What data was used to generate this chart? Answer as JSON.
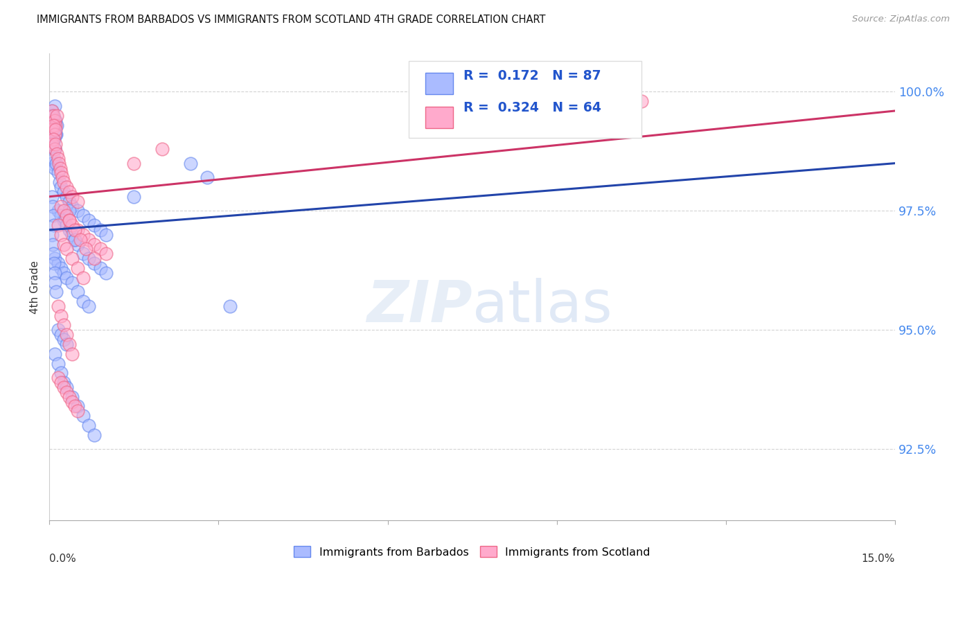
{
  "title": "IMMIGRANTS FROM BARBADOS VS IMMIGRANTS FROM SCOTLAND 4TH GRADE CORRELATION CHART",
  "source": "Source: ZipAtlas.com",
  "ylabel": "4th Grade",
  "yticks": [
    92.5,
    95.0,
    97.5,
    100.0
  ],
  "ytick_labels": [
    "92.5%",
    "95.0%",
    "97.5%",
    "100.0%"
  ],
  "xmin": 0.0,
  "xmax": 15.0,
  "ymin": 91.0,
  "ymax": 100.8,
  "barbados_color": "#aabbff",
  "barbados_edge": "#6688ee",
  "scotland_color": "#ffaacc",
  "scotland_edge": "#ee6688",
  "trend_blue": "#2244aa",
  "trend_pink": "#cc3366",
  "barbados_R": 0.172,
  "barbados_N": 87,
  "scotland_R": 0.324,
  "scotland_N": 64,
  "legend_label_1": "Immigrants from Barbados",
  "legend_label_2": "Immigrants from Scotland",
  "watermark_zip": "ZIP",
  "watermark_atlas": "atlas",
  "corr_text_color": "#2255cc",
  "barbados_points_x": [
    0.05,
    0.07,
    0.09,
    0.11,
    0.13,
    0.05,
    0.06,
    0.08,
    0.1,
    0.12,
    0.04,
    0.06,
    0.08,
    0.1,
    0.07,
    0.09,
    0.11,
    0.05,
    0.08,
    0.1,
    0.12,
    0.15,
    0.18,
    0.2,
    0.25,
    0.3,
    0.35,
    0.4,
    0.5,
    0.6,
    0.7,
    0.8,
    0.9,
    1.0,
    0.15,
    0.2,
    0.25,
    0.3,
    0.35,
    0.4,
    0.45,
    0.5,
    0.6,
    0.7,
    0.8,
    0.9,
    1.0,
    0.1,
    0.15,
    0.2,
    0.25,
    0.3,
    0.4,
    0.5,
    0.6,
    0.7,
    0.15,
    0.2,
    0.25,
    0.3,
    0.1,
    0.15,
    0.2,
    0.25,
    0.3,
    0.4,
    0.5,
    0.6,
    0.7,
    0.8,
    2.5,
    3.2,
    0.05,
    0.06,
    0.07,
    0.08,
    0.05,
    0.06,
    0.07,
    0.08,
    0.09,
    0.1,
    0.12,
    1.5,
    2.8,
    0.35,
    0.45
  ],
  "barbados_points_y": [
    99.6,
    99.5,
    99.7,
    99.4,
    99.3,
    99.1,
    99.2,
    99.0,
    99.3,
    99.1,
    99.5,
    98.9,
    99.2,
    98.8,
    99.0,
    98.8,
    99.1,
    98.5,
    98.6,
    98.4,
    98.5,
    98.3,
    98.1,
    98.0,
    97.9,
    97.8,
    97.7,
    97.6,
    97.5,
    97.4,
    97.3,
    97.2,
    97.1,
    97.0,
    97.5,
    97.4,
    97.3,
    97.2,
    97.1,
    97.0,
    96.9,
    96.8,
    96.6,
    96.5,
    96.4,
    96.3,
    96.2,
    96.5,
    96.4,
    96.3,
    96.2,
    96.1,
    96.0,
    95.8,
    95.6,
    95.5,
    95.0,
    94.9,
    94.8,
    94.7,
    94.5,
    94.3,
    94.1,
    93.9,
    93.8,
    93.6,
    93.4,
    93.2,
    93.0,
    92.8,
    98.5,
    95.5,
    97.8,
    97.6,
    97.4,
    97.2,
    97.0,
    96.8,
    96.6,
    96.4,
    96.2,
    96.0,
    95.8,
    97.8,
    98.2,
    97.5,
    96.9
  ],
  "scotland_points_x": [
    0.05,
    0.07,
    0.09,
    0.11,
    0.13,
    0.05,
    0.07,
    0.09,
    0.11,
    0.05,
    0.07,
    0.09,
    0.11,
    0.13,
    0.15,
    0.17,
    0.19,
    0.21,
    0.23,
    0.25,
    0.3,
    0.35,
    0.4,
    0.5,
    0.2,
    0.25,
    0.3,
    0.35,
    0.4,
    0.5,
    0.6,
    0.7,
    0.8,
    0.9,
    1.0,
    0.15,
    0.2,
    0.25,
    0.3,
    0.4,
    0.5,
    0.6,
    0.15,
    0.2,
    0.25,
    0.3,
    0.35,
    0.4,
    0.15,
    0.2,
    0.25,
    0.3,
    0.35,
    0.4,
    0.45,
    0.5,
    1.5,
    2.0,
    10.5,
    0.35,
    0.45,
    0.55,
    0.65,
    0.8
  ],
  "scotland_points_y": [
    99.6,
    99.5,
    99.4,
    99.3,
    99.5,
    99.2,
    99.3,
    99.1,
    99.2,
    98.9,
    99.0,
    98.8,
    98.9,
    98.7,
    98.6,
    98.5,
    98.4,
    98.3,
    98.2,
    98.1,
    98.0,
    97.9,
    97.8,
    97.7,
    97.6,
    97.5,
    97.4,
    97.3,
    97.2,
    97.1,
    97.0,
    96.9,
    96.8,
    96.7,
    96.6,
    97.2,
    97.0,
    96.8,
    96.7,
    96.5,
    96.3,
    96.1,
    95.5,
    95.3,
    95.1,
    94.9,
    94.7,
    94.5,
    94.0,
    93.9,
    93.8,
    93.7,
    93.6,
    93.5,
    93.4,
    93.3,
    98.5,
    98.8,
    99.8,
    97.3,
    97.1,
    96.9,
    96.7,
    96.5
  ]
}
